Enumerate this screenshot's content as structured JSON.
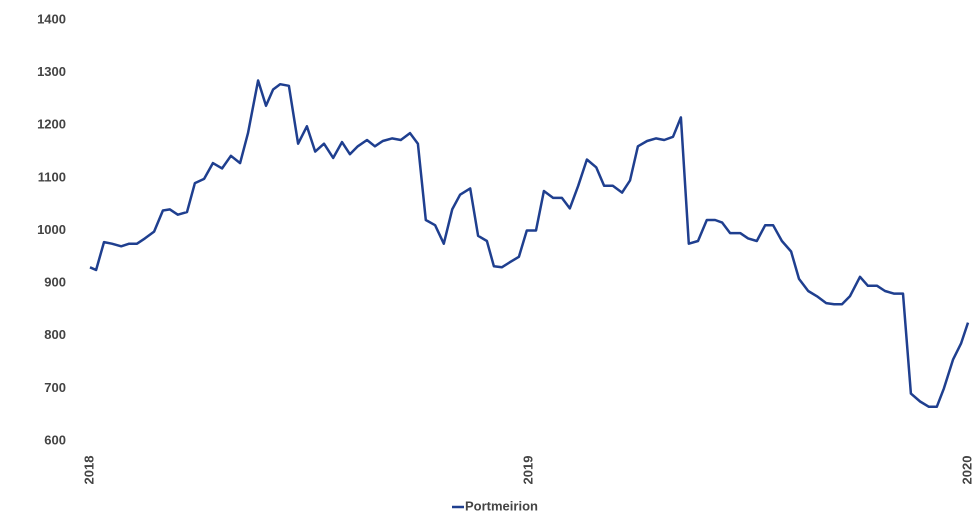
{
  "chart_data": {
    "type": "line",
    "x": [
      2018.0,
      2018.014,
      2018.032,
      2018.05,
      2018.071,
      2018.089,
      2018.107,
      2018.125,
      2018.146,
      2018.166,
      2018.182,
      2018.2,
      2018.221,
      2018.239,
      2018.26,
      2018.28,
      2018.301,
      2018.321,
      2018.342,
      2018.36,
      2018.383,
      2018.401,
      2018.417,
      2018.433,
      2018.453,
      2018.474,
      2018.494,
      2018.513,
      2018.533,
      2018.554,
      2018.574,
      2018.592,
      2018.61,
      2018.631,
      2018.649,
      2018.667,
      2018.688,
      2018.708,
      2018.729,
      2018.747,
      2018.765,
      2018.786,
      2018.806,
      2018.825,
      2018.843,
      2018.866,
      2018.884,
      2018.904,
      2018.92,
      2018.938,
      2018.957,
      2018.977,
      2018.995,
      2019.016,
      2019.034,
      2019.055,
      2019.075,
      2019.093,
      2019.112,
      2019.132,
      2019.153,
      2019.171,
      2019.191,
      2019.212,
      2019.23,
      2019.248,
      2019.269,
      2019.289,
      2019.308,
      2019.328,
      2019.346,
      2019.364,
      2019.385,
      2019.405,
      2019.424,
      2019.44,
      2019.458,
      2019.481,
      2019.499,
      2019.519,
      2019.538,
      2019.556,
      2019.576,
      2019.597,
      2019.615,
      2019.636,
      2019.656,
      2019.677,
      2019.695,
      2019.713,
      2019.731,
      2019.754,
      2019.772,
      2019.793,
      2019.811,
      2019.831,
      2019.852,
      2019.87,
      2019.891,
      2019.911,
      2019.929,
      2019.945,
      2019.966,
      2019.984,
      2020.0
    ],
    "series": [
      {
        "name": "Portmeirion",
        "color": "#1f3f8f",
        "values": [
          930,
          925,
          978,
          975,
          970,
          975,
          975,
          985,
          998,
          1038,
          1040,
          1030,
          1035,
          1090,
          1098,
          1128,
          1118,
          1142,
          1128,
          1185,
          1285,
          1237,
          1268,
          1278,
          1275,
          1165,
          1198,
          1150,
          1165,
          1138,
          1168,
          1145,
          1160,
          1172,
          1160,
          1170,
          1175,
          1172,
          1185,
          1165,
          1020,
          1010,
          975,
          1040,
          1068,
          1080,
          990,
          980,
          932,
          930,
          940,
          950,
          1000,
          1000,
          1075,
          1062,
          1062,
          1042,
          1085,
          1135,
          1120,
          1085,
          1085,
          1072,
          1095,
          1160,
          1170,
          1175,
          1172,
          1178,
          1215,
          975,
          980,
          1020,
          1020,
          1015,
          995,
          995,
          985,
          980,
          1010,
          1010,
          980,
          960,
          908,
          885,
          875,
          862,
          860,
          860,
          875,
          912,
          895,
          895,
          885,
          880,
          880,
          690,
          675,
          665,
          665,
          700,
          755,
          785,
          825
        ]
      }
    ],
    "xlim": [
      2018,
      2020
    ],
    "xticks": [
      2018,
      2019,
      2020
    ],
    "ylim": [
      600,
      1400
    ],
    "yticks": [
      600,
      700,
      800,
      900,
      1000,
      1100,
      1200,
      1300,
      1400
    ],
    "grid": false
  }
}
